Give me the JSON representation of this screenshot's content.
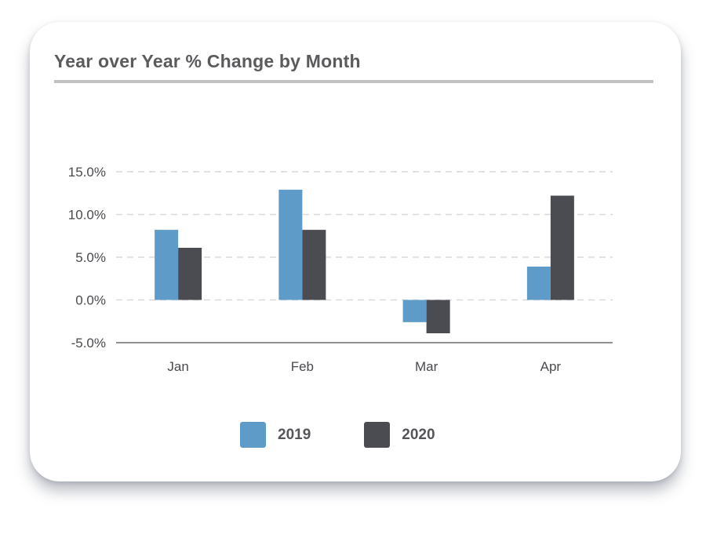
{
  "chart_data": {
    "type": "bar",
    "title": "Year over Year % Change by Month",
    "categories": [
      "Jan",
      "Feb",
      "Mar",
      "Apr"
    ],
    "series": [
      {
        "name": "2019",
        "color": "#5f9bc8",
        "values": [
          8.2,
          12.9,
          -2.6,
          3.9
        ]
      },
      {
        "name": "2020",
        "color": "#4b4b52",
        "values": [
          6.1,
          8.2,
          -3.9,
          12.2
        ]
      }
    ],
    "yticks": [
      {
        "value": 15,
        "label": "15.0%"
      },
      {
        "value": 10,
        "label": "10.0%"
      },
      {
        "value": 5,
        "label": "5.0%"
      },
      {
        "value": 0,
        "label": "0.0%"
      },
      {
        "value": -5,
        "label": "-5.0%"
      }
    ],
    "ylim": [
      -5,
      15
    ],
    "grid": true,
    "legend_position": "bottom"
  }
}
